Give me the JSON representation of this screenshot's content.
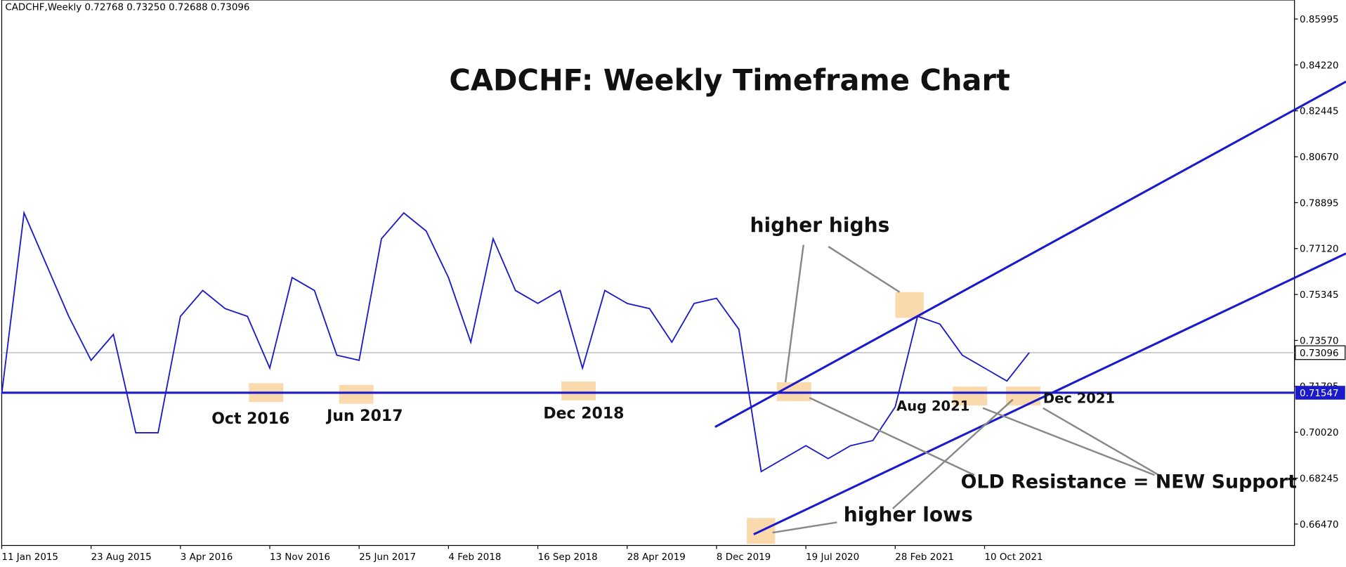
{
  "header": "CADCHF,Weekly  0.72768 0.73250 0.72688 0.73096",
  "chart_data": {
    "type": "line",
    "title": "CADCHF: Weekly Timeframe Chart",
    "x": [
      0,
      8,
      16,
      24,
      32,
      40,
      48,
      56,
      64,
      72,
      80,
      88,
      96,
      104,
      112,
      120,
      128,
      136,
      144,
      152,
      160,
      168,
      176,
      184,
      192,
      200,
      208,
      216,
      224,
      232,
      240,
      248,
      256,
      264,
      272,
      280,
      288,
      296,
      304,
      312,
      320,
      328,
      336,
      344,
      352,
      360,
      368
    ],
    "series": [
      {
        "name": "CADCHF",
        "color": "#1a1acc",
        "values": [
          0.715,
          0.785,
          0.765,
          0.745,
          0.728,
          0.738,
          0.7,
          0.7,
          0.745,
          0.755,
          0.748,
          0.745,
          0.725,
          0.76,
          0.755,
          0.73,
          0.728,
          0.775,
          0.785,
          0.778,
          0.76,
          0.735,
          0.775,
          0.755,
          0.75,
          0.755,
          0.725,
          0.755,
          0.75,
          0.748,
          0.735,
          0.75,
          0.752,
          0.74,
          0.685,
          0.69,
          0.695,
          0.69,
          0.695,
          0.697,
          0.71,
          0.745,
          0.742,
          0.73,
          0.725,
          0.72,
          0.73096
        ]
      }
    ],
    "xlim": [
      0,
      463
    ],
    "xticks": [
      {
        "value": 0,
        "label": "11 Jan 2015"
      },
      {
        "value": 32,
        "label": "23 Aug 2015"
      },
      {
        "value": 64,
        "label": "3 Apr 2016"
      },
      {
        "value": 96,
        "label": "13 Nov 2016"
      },
      {
        "value": 128,
        "label": "25 Jun 2017"
      },
      {
        "value": 160,
        "label": "4 Feb 2018"
      },
      {
        "value": 192,
        "label": "16 Sep 2018"
      },
      {
        "value": 224,
        "label": "28 Apr 2019"
      },
      {
        "value": 256,
        "label": "8 Dec 2019"
      },
      {
        "value": 288,
        "label": "19 Jul 2020"
      },
      {
        "value": 320,
        "label": "28 Feb 2021"
      },
      {
        "value": 352,
        "label": "10 Oct 2021"
      }
    ],
    "ylim": [
      0.6564,
      0.8673
    ],
    "yticks": [
      0.85995,
      {
        "value": 0.8422,
        "label": "0.84220"
      },
      0.82445,
      {
        "value": 0.8067,
        "label": "0.80670"
      },
      0.78895,
      {
        "value": 0.7712,
        "label": "0.77120"
      },
      0.75345,
      {
        "value": 0.7357,
        "label": "0.73570"
      },
      0.71795,
      {
        "value": 0.7002,
        "label": "0.70020"
      },
      0.68245,
      {
        "value": 0.6647,
        "label": "0.66470"
      }
    ],
    "current_price": 0.73096,
    "support_level": 0.71547,
    "annotations": [
      "higher highs",
      "Oct 2016",
      "Jun 2017",
      "Dec 2018",
      "Aug 2021",
      "Dec 2021",
      "OLD Resistance = NEW Support",
      "higher lows"
    ]
  }
}
